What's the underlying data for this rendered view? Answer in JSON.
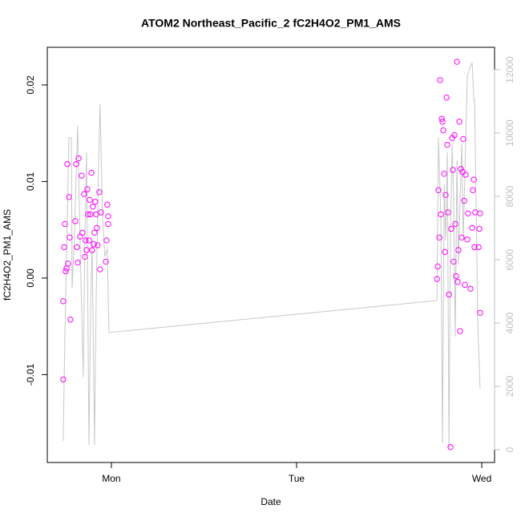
{
  "chart_data": {
    "type": "scatter",
    "title": "ATOM2 Northeast_Pacific_2 fC2H4O2_PM1_AMS",
    "xlabel": "Date",
    "ylabel": "fC2H4O2_PM1_AMS",
    "xlim": [
      0.654,
      3.069
    ],
    "xticks": [
      {
        "value": 1,
        "label": "Mon"
      },
      {
        "value": 2,
        "label": "Tue"
      },
      {
        "value": 3,
        "label": "Wed"
      }
    ],
    "ylim": [
      -0.0191,
      0.0239
    ],
    "yticks": [
      -0.01,
      {
        "value": 0,
        "label": "0.00"
      },
      0.01,
      0.02
    ],
    "y2lim": [
      -405,
      12709
    ],
    "y2ticks": [
      0,
      2000,
      4000,
      6000,
      8000,
      10000,
      12000
    ],
    "series": [
      {
        "type": "scatter",
        "color": "#ff00ff",
        "x": [
          0.74,
          0.74,
          0.745,
          0.749,
          0.753,
          0.758,
          0.762,
          0.766,
          0.771,
          0.775,
          0.779,
          0.805,
          0.81,
          0.814,
          0.818,
          0.823,
          0.831,
          0.84,
          0.844,
          0.853,
          0.857,
          0.861,
          0.866,
          0.87,
          0.874,
          0.879,
          0.883,
          0.887,
          0.892,
          0.896,
          0.9,
          0.905,
          0.909,
          0.913,
          0.918,
          0.922,
          0.926,
          0.935,
          0.939,
          0.944,
          0.97,
          0.974,
          0.978,
          0.983,
          0.983,
          2.758,
          2.762,
          2.766,
          2.771,
          2.775,
          2.779,
          2.784,
          2.788,
          2.792,
          2.797,
          2.801,
          2.805,
          2.81,
          2.814,
          2.818,
          2.823,
          2.831,
          2.835,
          2.84,
          2.844,
          2.848,
          2.853,
          2.857,
          2.861,
          2.866,
          2.87,
          2.874,
          2.879,
          2.883,
          2.887,
          2.892,
          2.896,
          2.9,
          2.905,
          2.909,
          2.913,
          2.922,
          2.926,
          2.939,
          2.948,
          2.952,
          2.957,
          2.961,
          2.965,
          2.983,
          2.987,
          2.991,
          2.991
        ],
        "values": [
          -0.0105,
          -0.0024,
          0.0032,
          0.0056,
          0.0007,
          0.001,
          0.0118,
          0.0015,
          0.0084,
          0.0042,
          -0.0043,
          0.0059,
          0.0118,
          0.0032,
          0.0016,
          0.0124,
          0.0043,
          0.0106,
          0.0047,
          0.0087,
          0.0022,
          0.0039,
          0.0029,
          0.0092,
          0.0066,
          0.0039,
          0.0081,
          0.0066,
          0.0109,
          0.0029,
          0.0074,
          0.0035,
          0.0047,
          0.0079,
          0.0066,
          0.0052,
          0.0034,
          0.0089,
          0.0009,
          0.0068,
          0.0017,
          0.0039,
          0.0076,
          0.0064,
          0.0056,
          -0.0001,
          0.0012,
          0.0091,
          0.0042,
          0.0205,
          0.0066,
          0.0165,
          0.0162,
          0.0153,
          0.0108,
          0.0027,
          0.0086,
          0.0187,
          0.0138,
          0.0068,
          -0.0017,
          -0.0175,
          0.0051,
          0.0145,
          0.0112,
          0.0017,
          0.0148,
          0.0056,
          0.0002,
          0.0224,
          -0.0004,
          0.0029,
          0.0162,
          -0.0055,
          0.0113,
          0.0042,
          0.011,
          0.0144,
          0.008,
          -0.0007,
          0.0107,
          0.004,
          0.0067,
          -0.0011,
          0.0052,
          0.0091,
          0.0102,
          0.0032,
          0.0068,
          0.0032,
          0.0051,
          0.0067,
          -0.0036
        ]
      },
      {
        "type": "line",
        "axis": "y2",
        "color": "#c8c8c8",
        "x": [
          0.74,
          0.749,
          0.771,
          0.784,
          0.788,
          0.801,
          0.818,
          0.831,
          0.848,
          0.857,
          0.866,
          0.879,
          0.887,
          0.896,
          0.909,
          0.918,
          0.931,
          0.939,
          0.952,
          0.965,
          0.978,
          0.987,
          2.758,
          2.766,
          2.779,
          2.788,
          2.797,
          2.805,
          2.814,
          2.823,
          2.831,
          2.84,
          2.848,
          2.857,
          2.866,
          2.874,
          2.883,
          2.892,
          2.9,
          2.909,
          2.922,
          2.935,
          2.948,
          2.957,
          2.961,
          2.97,
          2.978,
          2.991
        ],
        "values": [
          280,
          3570,
          9850,
          9850,
          5090,
          6860,
          10230,
          6610,
          2300,
          6610,
          9390,
          150,
          4080,
          6610,
          150,
          4840,
          9140,
          10910,
          7370,
          6100,
          6350,
          3700,
          4710,
          9850,
          7370,
          200,
          8380,
          6610,
          9390,
          25,
          6860,
          9650,
          7870,
          3570,
          9140,
          5850,
          7870,
          9650,
          6610,
          8760,
          11800,
          12050,
          12230,
          11040,
          11040,
          7620,
          4080,
          1920
        ]
      }
    ]
  }
}
